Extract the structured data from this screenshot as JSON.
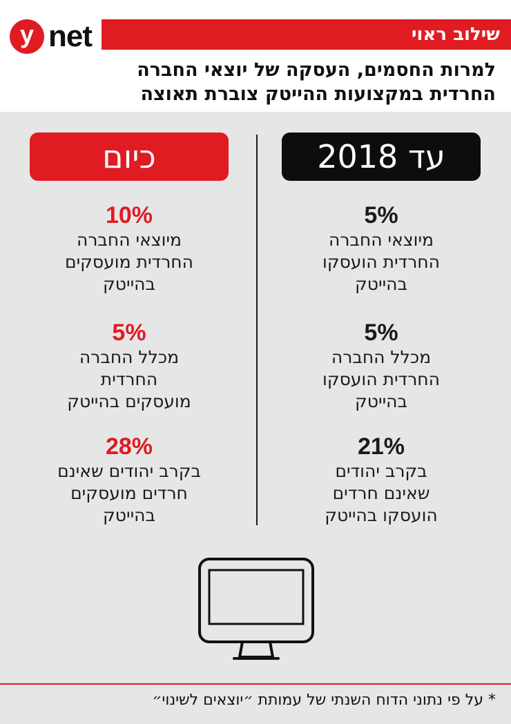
{
  "brand": {
    "logo_letter": "y",
    "logo_word": "net",
    "accent_color": "#e01b22"
  },
  "header": {
    "section_label": "שילוב ראוי",
    "headline_line1": "למרות החסמים, העסקה של יוצאי החברה",
    "headline_line2": "החרדית במקצועות ההייטק צוברת תאוצה"
  },
  "columns": {
    "today": {
      "label": "כיום",
      "color": "#e01b22",
      "stats": [
        {
          "value": "10%",
          "text": "מיוצאי החברה\nהחרדית מועסקים\nבהייטק"
        },
        {
          "value": "5%",
          "text": "מכלל החברה\nהחרדית\nמועסקים בהייטק"
        },
        {
          "value": "28%",
          "text": "בקרב יהודים שאינם\nחרדים מועסקים\nבהייטק"
        }
      ]
    },
    "until_2018": {
      "label": "עד 2018",
      "color": "#0d0d0d",
      "stats": [
        {
          "value": "5%",
          "text": "מיוצאי החברה\nהחרדית הועסקו\nבהייטק"
        },
        {
          "value": "5%",
          "text": "מכלל החברה\nהחרדית הועסקו\nבהייטק"
        },
        {
          "value": "21%",
          "text": "בקרב יהודים\nשאינם חרדים\nהועסקו בהייטק"
        }
      ]
    }
  },
  "illustration": {
    "icon": "computer-monitor-icon"
  },
  "footer": {
    "note": "* על פי נתוני הדוח השנתי של עמותת ״יוצאים לשינוי״"
  }
}
